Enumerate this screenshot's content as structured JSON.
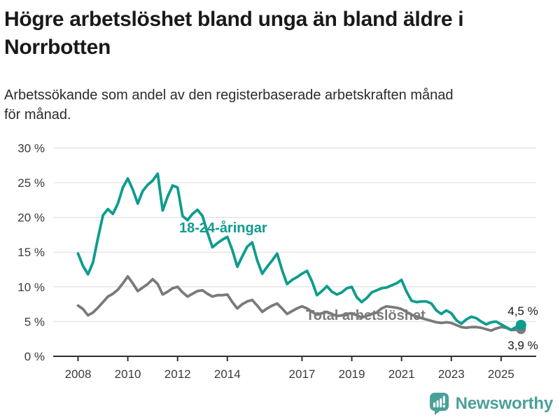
{
  "header": {
    "title_lines": [
      "Högre arbetslöshet bland unga än bland äldre i",
      "Norrbotten"
    ],
    "subtitle_lines": [
      "Arbetssökande som andel av den registerbaserade arbetskraften månad",
      "för månad."
    ]
  },
  "chart_data": {
    "type": "line",
    "title": "Högre arbetslöshet bland unga än bland äldre i Norrbotten",
    "subtitle": "Arbetssökande som andel av den registerbaserade arbetskraften månad för månad.",
    "xlabel": "",
    "ylabel": "",
    "unit": "%",
    "grid": true,
    "legend_position": "inline-labels",
    "ylim": [
      0,
      30
    ],
    "yticks": [
      0,
      5,
      10,
      15,
      20,
      25,
      30
    ],
    "ytick_suffix": " %",
    "xticks": [
      2008,
      2010,
      2012,
      2014,
      2017,
      2019,
      2021,
      2023,
      2025
    ],
    "x_range": [
      2008.0,
      2025.8
    ],
    "x": [
      2008.0,
      2008.2,
      2008.4,
      2008.6,
      2008.8,
      2009.0,
      2009.2,
      2009.4,
      2009.6,
      2009.8,
      2010.0,
      2010.2,
      2010.4,
      2010.6,
      2010.8,
      2011.0,
      2011.2,
      2011.4,
      2011.6,
      2011.8,
      2012.0,
      2012.2,
      2012.4,
      2012.6,
      2012.8,
      2013.0,
      2013.2,
      2013.4,
      2013.6,
      2013.8,
      2014.0,
      2014.2,
      2014.4,
      2014.6,
      2014.8,
      2015.0,
      2015.2,
      2015.4,
      2015.6,
      2015.8,
      2016.0,
      2016.2,
      2016.4,
      2016.6,
      2016.8,
      2017.0,
      2017.2,
      2017.4,
      2017.6,
      2017.8,
      2018.0,
      2018.2,
      2018.4,
      2018.6,
      2018.8,
      2019.0,
      2019.2,
      2019.4,
      2019.6,
      2019.8,
      2020.0,
      2020.2,
      2020.4,
      2020.6,
      2020.8,
      2021.0,
      2021.2,
      2021.4,
      2021.6,
      2021.8,
      2022.0,
      2022.2,
      2022.4,
      2022.6,
      2022.8,
      2023.0,
      2023.2,
      2023.4,
      2023.6,
      2023.8,
      2024.0,
      2024.2,
      2024.4,
      2024.6,
      2024.8,
      2025.0,
      2025.2,
      2025.4,
      2025.6,
      2025.8
    ],
    "series": [
      {
        "name": "18-24-åringar",
        "color": "#0e9c8d",
        "end_label": "4,5 %",
        "end_value": 4.5,
        "values": [
          14.8,
          13.0,
          11.8,
          13.5,
          17.0,
          20.3,
          21.2,
          20.5,
          22.0,
          24.3,
          25.6,
          24.0,
          22.0,
          23.8,
          24.7,
          25.3,
          26.3,
          21.0,
          23.0,
          24.6,
          24.3,
          20.2,
          19.6,
          20.5,
          21.1,
          20.2,
          17.8,
          15.7,
          16.3,
          16.8,
          17.2,
          15.3,
          12.9,
          14.4,
          15.8,
          16.4,
          13.8,
          11.9,
          12.9,
          13.8,
          14.8,
          12.4,
          10.4,
          11.0,
          11.4,
          11.9,
          12.3,
          10.8,
          8.8,
          9.4,
          10.1,
          9.3,
          8.9,
          9.2,
          9.8,
          10.0,
          8.5,
          7.8,
          8.4,
          9.2,
          9.5,
          9.8,
          9.9,
          10.2,
          10.5,
          11.0,
          9.3,
          8.0,
          7.8,
          7.9,
          7.9,
          7.6,
          6.6,
          6.1,
          6.6,
          6.2,
          5.2,
          4.7,
          5.3,
          5.7,
          5.5,
          5.0,
          4.6,
          4.9,
          5.0,
          4.6,
          4.2,
          3.8,
          4.2,
          4.5
        ]
      },
      {
        "name": "Total arbetslöshet",
        "color": "#7a7a7a",
        "end_label": "3,9 %",
        "end_value": 3.9,
        "values": [
          7.3,
          6.8,
          5.9,
          6.3,
          7.0,
          7.8,
          8.6,
          9.0,
          9.6,
          10.5,
          11.5,
          10.5,
          9.4,
          9.9,
          10.4,
          11.1,
          10.4,
          8.9,
          9.3,
          9.8,
          10.0,
          9.2,
          8.6,
          9.0,
          9.4,
          9.5,
          9.0,
          8.6,
          8.8,
          8.8,
          8.9,
          7.8,
          6.9,
          7.5,
          7.9,
          8.1,
          7.3,
          6.4,
          6.9,
          7.3,
          7.6,
          6.9,
          6.1,
          6.5,
          6.9,
          7.2,
          6.9,
          6.4,
          6.0,
          6.2,
          6.4,
          6.1,
          5.8,
          5.9,
          6.1,
          6.2,
          5.9,
          5.6,
          5.8,
          6.1,
          6.3,
          6.9,
          7.2,
          7.1,
          7.0,
          6.8,
          6.4,
          6.0,
          5.7,
          5.5,
          5.3,
          5.1,
          4.9,
          4.8,
          4.9,
          4.8,
          4.5,
          4.2,
          4.1,
          4.2,
          4.2,
          4.1,
          3.9,
          3.7,
          4.0,
          4.2,
          4.1,
          3.8,
          3.8,
          3.9
        ]
      }
    ],
    "colors": {
      "grid": "#dcdcdc",
      "axis": "#2f2f2f",
      "tick_text": "#3a3a3a",
      "end_label_text": "#1a1a1a"
    }
  },
  "footer": {
    "brand": "Newsworthy",
    "brand_color": "#4aa09a"
  }
}
